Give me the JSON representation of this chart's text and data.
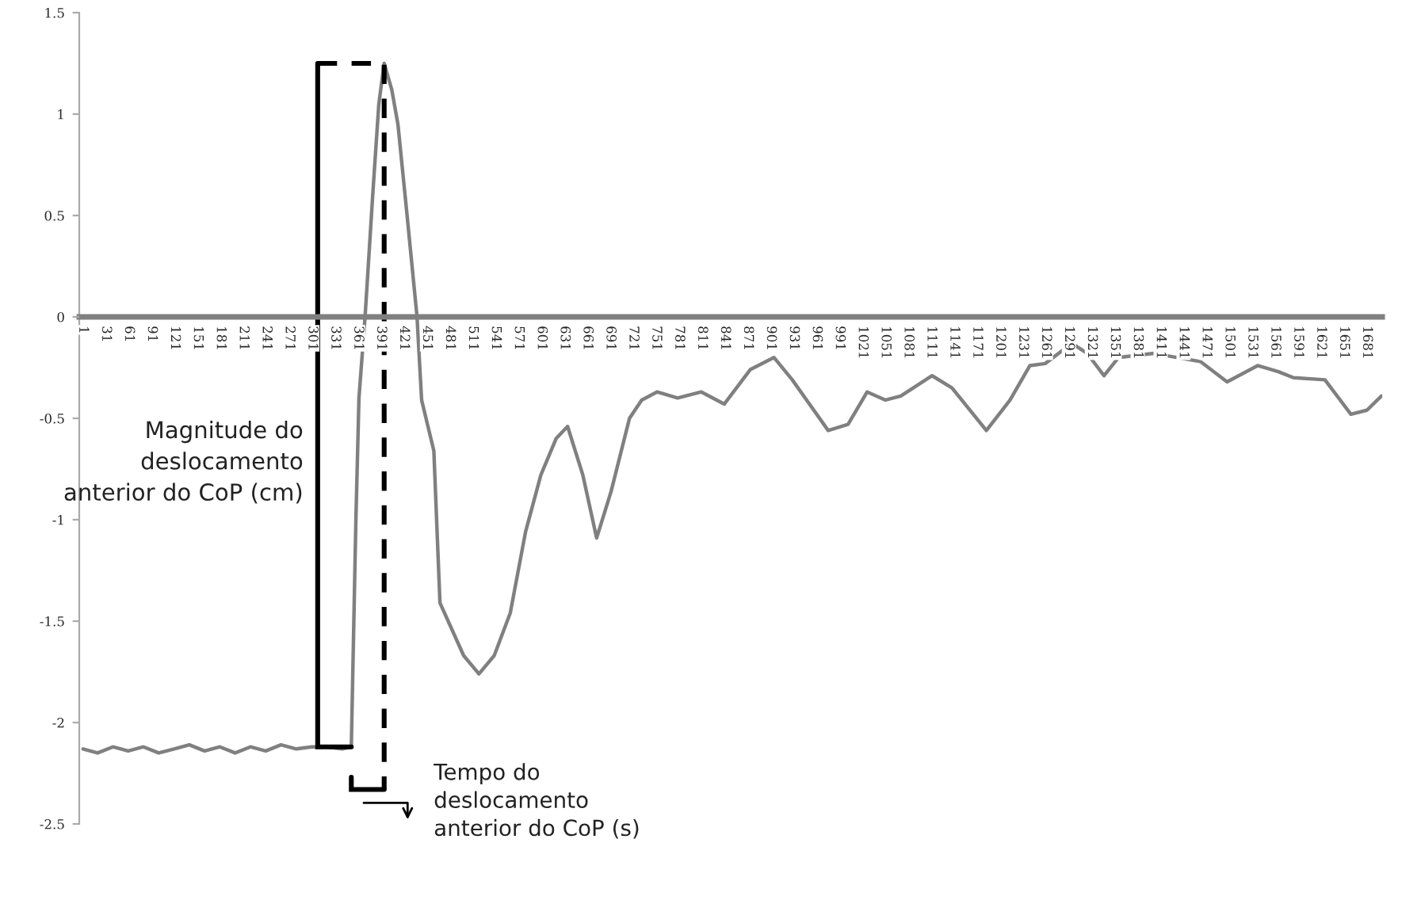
{
  "chart_data": {
    "type": "line",
    "x": [
      1,
      20,
      40,
      60,
      80,
      100,
      120,
      140,
      160,
      180,
      200,
      220,
      240,
      260,
      280,
      300,
      320,
      340,
      352,
      358,
      362,
      370,
      380,
      388,
      395,
      405,
      413,
      425,
      438,
      444,
      460,
      468,
      499,
      519,
      539,
      560,
      580,
      600,
      620,
      635,
      655,
      673,
      692,
      716,
      732,
      752,
      779,
      810,
      840,
      874,
      905,
      929,
      976,
      1002,
      1027,
      1051,
      1071,
      1112,
      1138,
      1183,
      1214,
      1240,
      1260,
      1295,
      1315,
      1337,
      1356,
      1402,
      1463,
      1498,
      1538,
      1565,
      1585,
      1626,
      1660,
      1681,
      1700
    ],
    "series": [
      {
        "color": "#808080",
        "values": [
          -2.13,
          -2.15,
          -2.12,
          -2.14,
          -2.12,
          -2.15,
          -2.13,
          -2.11,
          -2.14,
          -2.12,
          -2.15,
          -2.12,
          -2.14,
          -2.11,
          -2.13,
          -2.12,
          -2.12,
          -2.13,
          -2.12,
          -1.0,
          -0.4,
          0.0,
          0.6,
          1.05,
          1.25,
          1.12,
          0.95,
          0.5,
          0.0,
          -0.41,
          -0.66,
          -1.41,
          -1.67,
          -1.76,
          -1.67,
          -1.46,
          -1.06,
          -0.78,
          -0.6,
          -0.54,
          -0.78,
          -1.09,
          -0.86,
          -0.5,
          -0.41,
          -0.37,
          -0.4,
          -0.37,
          -0.43,
          -0.26,
          -0.2,
          -0.31,
          -0.56,
          -0.53,
          -0.37,
          -0.41,
          -0.39,
          -0.29,
          -0.35,
          -0.56,
          -0.41,
          -0.24,
          -0.23,
          -0.13,
          -0.18,
          -0.29,
          -0.2,
          -0.18,
          -0.22,
          -0.32,
          -0.24,
          -0.27,
          -0.3,
          -0.31,
          -0.48,
          -0.46,
          -0.39
        ]
      },
      {
        "color": "#000000",
        "x": [
          352,
          308,
          308
        ],
        "values": [
          -2.12,
          -2.12,
          1.25
        ]
      },
      {
        "color": "#000000",
        "x": [
          308,
          395,
          395
        ],
        "values": [
          1.25,
          1.25,
          -2.33
        ],
        "line_style": "dashed"
      },
      {
        "color": "#000000",
        "x": [
          352,
          352,
          395
        ],
        "values": [
          -2.27,
          -2.33,
          -2.33
        ]
      }
    ],
    "xlim": [
      -4,
      1701
    ],
    "xticks": [
      1,
      31,
      61,
      91,
      121,
      151,
      181,
      211,
      241,
      271,
      301,
      331,
      361,
      391,
      421,
      451,
      481,
      511,
      541,
      571,
      601,
      631,
      661,
      691,
      721,
      751,
      781,
      811,
      841,
      871,
      901,
      931,
      961,
      991,
      1021,
      1051,
      1081,
      1111,
      1141,
      1171,
      1201,
      1231,
      1261,
      1291,
      1321,
      1351,
      1381,
      1411,
      1441,
      1471,
      1501,
      1531,
      1561,
      1591,
      1621,
      1651,
      1681
    ],
    "ylim": [
      -2.5,
      1.5
    ],
    "yticks": [
      -2.5,
      -2,
      -1.5,
      -1,
      -0.5,
      0,
      0.5,
      1,
      1.5
    ],
    "annotations": [
      "Magnitude do\ndeslocamento\nanterior do CoP (cm)",
      "Tempo do\ndeslocamento\nanterior do CoP (s)"
    ],
    "grid": false,
    "legend": false,
    "marker": "none",
    "line_style": "solid"
  }
}
